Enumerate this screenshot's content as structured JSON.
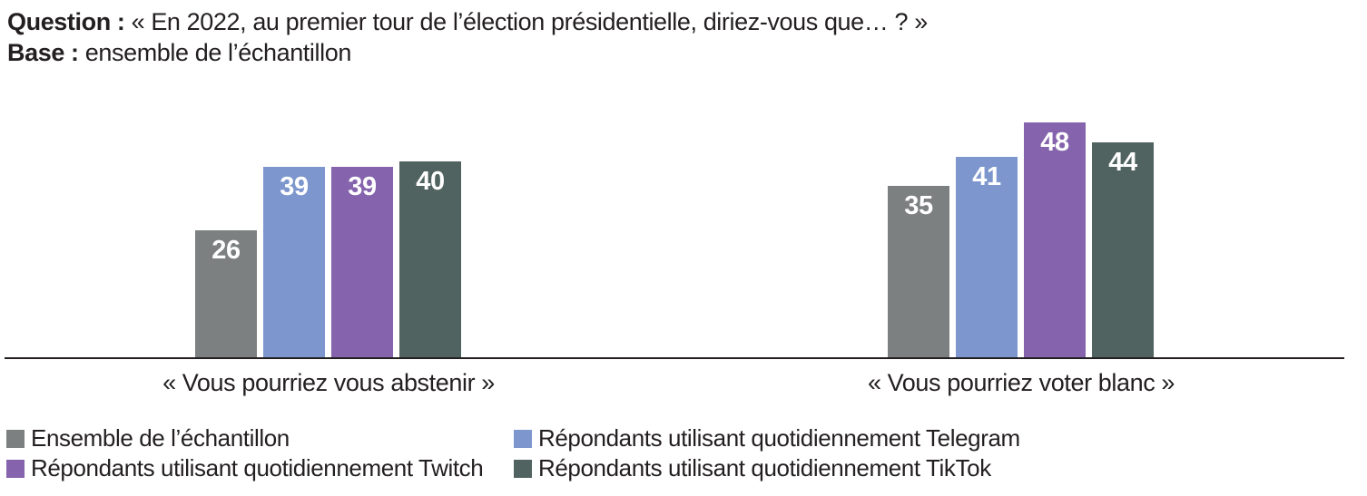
{
  "header": {
    "question_label": "Question :",
    "question_text": " « En 2022, au premier tour de l’élection présidentielle, diriez-vous que… ? »",
    "base_label": "Base :",
    "base_text": " ensemble de l’échantillon"
  },
  "chart_data": {
    "type": "bar",
    "title": "",
    "categories": [
      "« Vous pourriez vous abstenir »",
      "« Vous pourriez voter blanc »"
    ],
    "series": [
      {
        "key": "ensemble",
        "name": "Ensemble de l’échantillon",
        "color": "#7C8081",
        "values": [
          26,
          35
        ]
      },
      {
        "key": "telegram",
        "name": "Répondants utilisant quotidiennement Telegram",
        "color": "#7D96CE",
        "values": [
          39,
          41
        ]
      },
      {
        "key": "twitch",
        "name": "Répondants utilisant quotidiennement Twitch",
        "color": "#8564AD",
        "values": [
          39,
          48
        ]
      },
      {
        "key": "tiktok",
        "name": "Répondants utilisant quotidiennement TikTok",
        "color": "#516360",
        "values": [
          40,
          44
        ]
      }
    ],
    "value_labels": "inside-top-white-bold",
    "ylim": [
      0,
      50
    ],
    "grid": false,
    "legend_position": "bottom",
    "legend_columns": [
      [
        0,
        2
      ],
      [
        1,
        3
      ]
    ],
    "axis_color": "#231F20",
    "text_color": "#231F20",
    "background_color": "#FFFFFF"
  }
}
